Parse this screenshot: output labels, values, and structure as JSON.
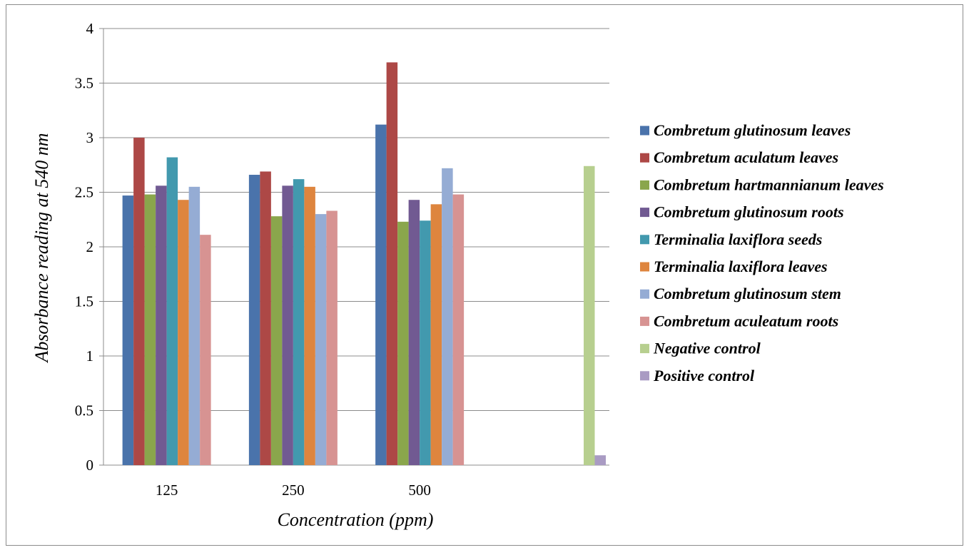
{
  "chart_data": {
    "type": "bar",
    "title": "",
    "xlabel": "Concentration (ppm)",
    "ylabel": "Absorbance reading at 540 nm",
    "categories": [
      "125",
      "250",
      "500",
      ""
    ],
    "ylim": [
      0,
      4
    ],
    "yticks": [
      "0",
      "0.5",
      "1",
      "1.5",
      "2",
      "2.5",
      "3",
      "3.5",
      "4"
    ],
    "grid": true,
    "legend_position": "right",
    "series": [
      {
        "name": "Combretum glutinosum leaves",
        "color": "#4a73ab",
        "values": [
          2.47,
          2.66,
          3.12,
          null
        ]
      },
      {
        "name": "Combretum aculatum leaves",
        "color": "#ad4846",
        "values": [
          3.0,
          2.69,
          3.69,
          null
        ]
      },
      {
        "name": "Combretum hartmannianum leaves",
        "color": "#8aa64c",
        "values": [
          2.48,
          2.28,
          2.23,
          null
        ]
      },
      {
        "name": "Combretum glutinosum roots",
        "color": "#715a92",
        "values": [
          2.56,
          2.56,
          2.43,
          null
        ]
      },
      {
        "name": "Terminalia laxiflora seeds",
        "color": "#4299ae",
        "values": [
          2.82,
          2.62,
          2.24,
          null
        ]
      },
      {
        "name": "Terminalia laxiflora leaves",
        "color": "#de853e",
        "values": [
          2.43,
          2.55,
          2.39,
          null
        ]
      },
      {
        "name": "Combretum glutinosum stem",
        "color": "#95acd4",
        "values": [
          2.55,
          2.3,
          2.72,
          null
        ]
      },
      {
        "name": "Combretum aculeatum roots",
        "color": "#d79392",
        "values": [
          2.11,
          2.33,
          2.48,
          null
        ]
      },
      {
        "name": "Negative control",
        "color": "#b7cf8f",
        "values": [
          null,
          null,
          null,
          2.74
        ]
      },
      {
        "name": "Positive control",
        "color": "#a99bc3",
        "values": [
          null,
          null,
          null,
          0.09
        ]
      }
    ]
  }
}
